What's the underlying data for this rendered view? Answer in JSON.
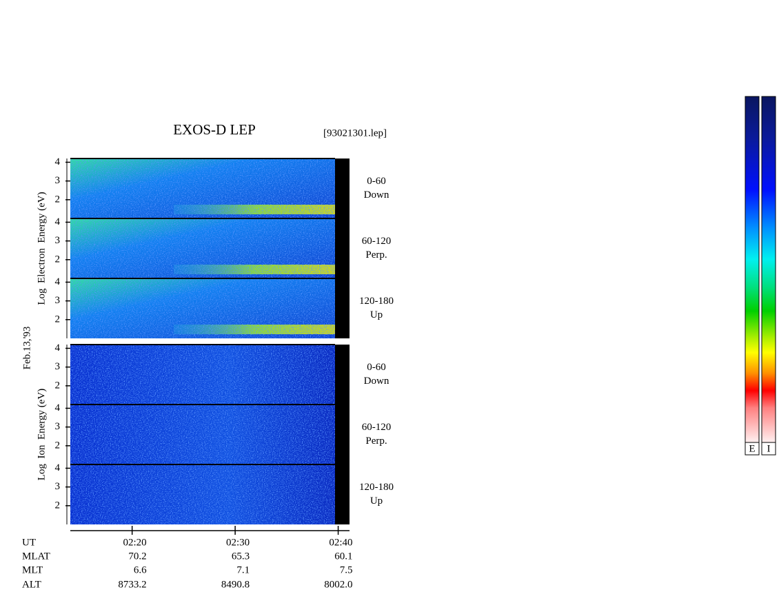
{
  "chart_data": {
    "type": "spectrogram",
    "title": "EXOS-D LEP",
    "file": "[93021301.lep]",
    "date": "Feb.13,'93",
    "groups": [
      {
        "ylabel": "Log  Electron  Energy (eV)",
        "colorbar": "E",
        "panels": [
          {
            "range": "0-60",
            "direction": "Down"
          },
          {
            "range": "60-120",
            "direction": "Perp."
          },
          {
            "range": "120-180",
            "direction": "Up"
          }
        ]
      },
      {
        "ylabel": "Log  Ion  Energy (eV)",
        "colorbar": "I",
        "panels": [
          {
            "range": "0-60",
            "direction": "Down"
          },
          {
            "range": "60-120",
            "direction": "Perp."
          },
          {
            "range": "120-180",
            "direction": "Up"
          }
        ]
      }
    ],
    "ylim": [
      1,
      4.2
    ],
    "yticks": [
      2,
      3,
      4
    ],
    "xlim": [
      14,
      41.1
    ],
    "xticks": [
      {
        "value": 20,
        "label": "02:20"
      },
      {
        "value": 30,
        "label": "02:30"
      },
      {
        "value": 40,
        "label": "02:40"
      }
    ],
    "ephemeris": [
      {
        "name": "UT"
      },
      {
        "name": "MLAT",
        "values": [
          "70.2",
          "65.3",
          "60.1"
        ]
      },
      {
        "name": "MLT",
        "values": [
          "6.6",
          "7.1",
          "7.5"
        ]
      },
      {
        "name": "ALT",
        "values": [
          "8733.2",
          "8490.8",
          "8002.0"
        ]
      }
    ]
  }
}
